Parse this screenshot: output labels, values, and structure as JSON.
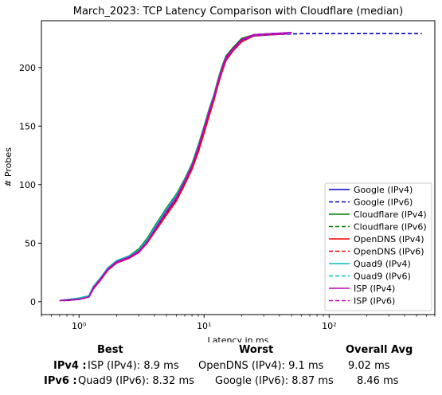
{
  "chart_data": {
    "type": "line",
    "title": "March_2023: TCP Latency Comparison with Cloudflare (median)",
    "xlabel": "Latency in ms",
    "ylabel": "# Probes",
    "xscale": "log",
    "xlim": [
      0.5,
      700
    ],
    "ylim": [
      -11,
      240
    ],
    "xticks": [
      {
        "value": 1,
        "label": "10⁰"
      },
      {
        "value": 10,
        "label": "10¹"
      },
      {
        "value": 100,
        "label": "10²"
      }
    ],
    "yticks": [
      0,
      50,
      100,
      150,
      200
    ],
    "grid": false,
    "legend_position": "lower-right",
    "series": [
      {
        "name": "Google (IPv4)",
        "color": "#0000cc",
        "dash": "solid",
        "x": [
          0.7,
          1.0,
          1.2,
          1.3,
          1.5,
          1.7,
          2.0,
          2.5,
          3.0,
          3.5,
          4.0,
          5.0,
          6.0,
          7.0,
          8.0,
          9.0,
          10.0,
          11.0,
          12.0,
          13.0,
          14.0,
          15.0,
          17.0,
          20.0,
          25.0,
          35.0,
          50.0
        ],
        "y": [
          1,
          3,
          5,
          12,
          20,
          28,
          34,
          38,
          44,
          52,
          62,
          77,
          89,
          103,
          116,
          132,
          148,
          163,
          175,
          189,
          200,
          209,
          216,
          224,
          228,
          229,
          229
        ]
      },
      {
        "name": "Google (IPv6)",
        "color": "#0000cc",
        "dash": "dashed",
        "x": [
          0.8,
          1.0,
          1.2,
          1.3,
          1.5,
          1.7,
          2.0,
          2.5,
          3.0,
          3.5,
          4.0,
          5.0,
          6.0,
          7.0,
          8.0,
          9.0,
          10.0,
          11.0,
          12.0,
          13.0,
          14.0,
          15.0,
          17.0,
          20.0,
          25.0,
          35.0,
          60.0,
          150.0,
          350.0,
          550.0
        ],
        "y": [
          1,
          2,
          4,
          11,
          19,
          27,
          33,
          37,
          42,
          50,
          60,
          75,
          87,
          101,
          114,
          130,
          146,
          161,
          174,
          188,
          199,
          208,
          215,
          223,
          227,
          228,
          229,
          229,
          229,
          229
        ]
      },
      {
        "name": "Cloudflare (IPv4)",
        "color": "#008000",
        "dash": "solid",
        "x": [
          0.7,
          1.0,
          1.2,
          1.3,
          1.5,
          1.7,
          2.0,
          2.5,
          3.0,
          3.5,
          4.0,
          5.0,
          6.0,
          7.0,
          8.0,
          9.0,
          10.0,
          11.0,
          12.0,
          13.0,
          14.0,
          15.0,
          17.0,
          20.0,
          25.0,
          35.0,
          45.0
        ],
        "y": [
          1,
          3,
          5,
          13,
          21,
          29,
          35,
          39,
          45,
          54,
          64,
          80,
          92,
          105,
          118,
          134,
          150,
          165,
          177,
          191,
          202,
          210,
          217,
          225,
          228,
          229,
          229
        ]
      },
      {
        "name": "Cloudflare (IPv6)",
        "color": "#008000",
        "dash": "dashed",
        "x": [
          0.75,
          1.0,
          1.2,
          1.3,
          1.5,
          1.7,
          2.0,
          2.5,
          3.0,
          3.5,
          4.0,
          5.0,
          6.0,
          7.0,
          8.0,
          9.0,
          10.0,
          11.0,
          12.0,
          13.0,
          14.0,
          15.0,
          17.0,
          20.0,
          25.0,
          35.0,
          50.0
        ],
        "y": [
          1,
          2,
          5,
          12,
          20,
          28,
          34,
          38,
          43,
          52,
          62,
          78,
          90,
          104,
          117,
          133,
          149,
          164,
          176,
          190,
          201,
          209,
          216,
          224,
          228,
          229,
          229
        ]
      },
      {
        "name": "OpenDNS (IPv4)",
        "color": "#ff0000",
        "dash": "solid",
        "x": [
          0.7,
          1.0,
          1.2,
          1.3,
          1.5,
          1.7,
          2.0,
          2.5,
          3.0,
          3.5,
          4.0,
          5.0,
          6.0,
          7.0,
          8.0,
          9.0,
          10.0,
          11.0,
          12.0,
          13.0,
          14.0,
          15.0,
          17.0,
          20.0,
          25.0,
          35.0,
          50.0
        ],
        "y": [
          1,
          2,
          4,
          11,
          19,
          27,
          33,
          37,
          42,
          50,
          59,
          74,
          86,
          100,
          113,
          128,
          144,
          159,
          172,
          186,
          197,
          206,
          214,
          222,
          227,
          228,
          229
        ]
      },
      {
        "name": "OpenDNS (IPv6)",
        "color": "#ff0000",
        "dash": "dashed",
        "x": [
          0.75,
          1.0,
          1.2,
          1.3,
          1.5,
          1.7,
          2.0,
          2.5,
          3.0,
          3.5,
          4.0,
          5.0,
          6.0,
          7.0,
          8.0,
          9.0,
          10.0,
          11.0,
          12.0,
          13.0,
          14.0,
          15.0,
          17.0,
          20.0,
          25.0,
          35.0,
          50.0
        ],
        "y": [
          1,
          2,
          4,
          12,
          20,
          28,
          34,
          38,
          43,
          51,
          61,
          76,
          88,
          102,
          115,
          131,
          147,
          162,
          174,
          188,
          199,
          208,
          215,
          223,
          227,
          228,
          229
        ]
      },
      {
        "name": "Quad9 (IPv4)",
        "color": "#00bfbf",
        "dash": "solid",
        "x": [
          0.7,
          1.0,
          1.2,
          1.3,
          1.5,
          1.7,
          2.0,
          2.5,
          3.0,
          3.5,
          4.0,
          5.0,
          6.0,
          7.0,
          8.0,
          9.0,
          10.0,
          11.0,
          12.0,
          13.0,
          14.0,
          15.0,
          17.0,
          20.0,
          25.0,
          35.0,
          50.0
        ],
        "y": [
          1,
          3,
          5,
          13,
          21,
          29,
          35,
          39,
          44,
          53,
          63,
          79,
          91,
          104,
          117,
          133,
          149,
          164,
          176,
          190,
          201,
          209,
          216,
          224,
          228,
          229,
          229
        ]
      },
      {
        "name": "Quad9 (IPv6)",
        "color": "#00bfbf",
        "dash": "dashed",
        "x": [
          0.75,
          1.0,
          1.2,
          1.3,
          1.5,
          1.7,
          2.0,
          2.5,
          3.0,
          3.5,
          4.0,
          5.0,
          6.0,
          7.0,
          8.0,
          9.0,
          10.0,
          11.0,
          12.0,
          13.0,
          14.0,
          15.0,
          17.0,
          20.0,
          25.0,
          35.0,
          50.0
        ],
        "y": [
          1,
          2,
          5,
          12,
          20,
          28,
          34,
          38,
          43,
          52,
          62,
          78,
          90,
          103,
          116,
          132,
          148,
          163,
          175,
          189,
          200,
          208,
          215,
          223,
          227,
          228,
          229
        ]
      },
      {
        "name": "ISP (IPv4)",
        "color": "#bf00bf",
        "dash": "solid",
        "x": [
          0.7,
          1.0,
          1.2,
          1.3,
          1.5,
          1.7,
          2.0,
          2.5,
          3.0,
          3.5,
          4.0,
          5.0,
          6.0,
          7.0,
          8.0,
          9.0,
          10.0,
          11.0,
          12.0,
          13.0,
          14.0,
          15.0,
          17.0,
          20.0,
          25.0,
          35.0,
          50.0
        ],
        "y": [
          1,
          2,
          4,
          12,
          20,
          28,
          34,
          38,
          43,
          51,
          61,
          77,
          89,
          103,
          116,
          132,
          148,
          163,
          175,
          189,
          200,
          209,
          216,
          224,
          228,
          229,
          230
        ]
      },
      {
        "name": "ISP (IPv6)",
        "color": "#bf00bf",
        "dash": "dashed",
        "x": [
          0.75,
          1.0,
          1.2,
          1.3,
          1.5,
          1.7,
          2.0,
          2.5,
          3.0,
          3.5,
          4.0,
          5.0,
          6.0,
          7.0,
          8.0,
          9.0,
          10.0,
          11.0,
          12.0,
          13.0,
          14.0,
          15.0,
          17.0,
          20.0,
          25.0,
          35.0,
          50.0
        ],
        "y": [
          1,
          2,
          4,
          11,
          19,
          27,
          33,
          37,
          42,
          51,
          60,
          76,
          88,
          102,
          115,
          131,
          147,
          162,
          174,
          188,
          199,
          207,
          215,
          223,
          227,
          228,
          229
        ]
      }
    ]
  },
  "summary": {
    "headers": {
      "best": "Best",
      "worst": "Worst",
      "avg": "Overall Avg"
    },
    "rows": [
      {
        "label": "IPv4 :",
        "best": "ISP (IPv4): 8.9 ms",
        "worst": "OpenDNS (IPv4): 9.1 ms",
        "avg": "9.02 ms"
      },
      {
        "label": "IPv6 :",
        "best": "Quad9 (IPv6): 8.32 ms",
        "worst": "Google (IPv6): 8.87 ms",
        "avg": "8.46 ms"
      }
    ]
  }
}
